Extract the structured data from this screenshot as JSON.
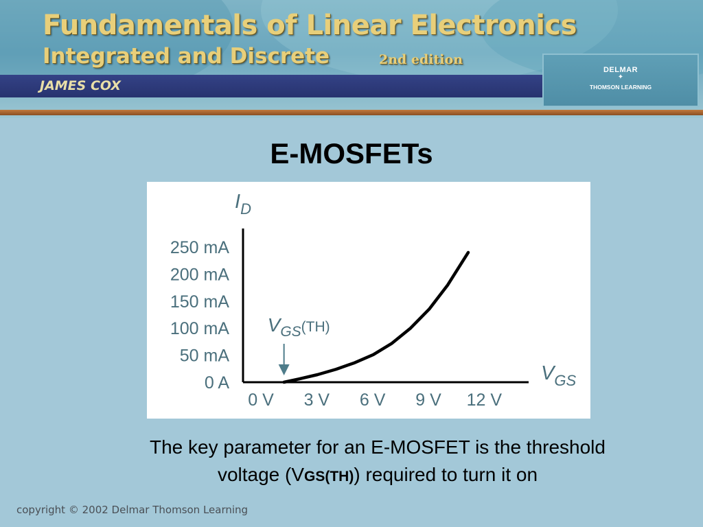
{
  "banner": {
    "title": "Fundamentals of Linear Electronics",
    "subtitle": "Integrated and Discrete",
    "edition": "2nd edition",
    "author": "JAMES COX",
    "publisher": "DELMAR",
    "publisher_sub": "THOMSON LEARNING"
  },
  "slide": {
    "title": "E-MOSFETs",
    "caption_line1": "The key parameter for an E-MOSFET is the threshold",
    "caption_pre": "voltage (V",
    "caption_sub": "GS(TH)",
    "caption_post": ") required to turn it on"
  },
  "footer": {
    "copyright": "copyright © 2002 Delmar Thomson Learning"
  },
  "colors": {
    "background": "#a3c8d8",
    "curve": "#000000",
    "arrow": "#4e7c8a"
  },
  "chart_data": {
    "type": "line",
    "title": "",
    "xlabel": "VGS",
    "ylabel": "ID",
    "x_ticks": [
      "0 V",
      "3 V",
      "6 V",
      "9 V",
      "12 V"
    ],
    "y_ticks": [
      "0 A",
      "50 mA",
      "100 mA",
      "150 mA",
      "200 mA",
      "250 mA"
    ],
    "xlim": [
      0,
      12.5
    ],
    "ylim": [
      0,
      250
    ],
    "grid": false,
    "annotation": {
      "label_main": "V",
      "label_sub": "GS",
      "label_tail": "(TH)",
      "x": 2.2
    },
    "series": [
      {
        "x": [
          2.2,
          3,
          4,
          5,
          6,
          7,
          8,
          9,
          10,
          11,
          12.1
        ],
        "y": [
          0,
          6,
          14,
          24,
          36,
          51,
          72,
          100,
          135,
          180,
          240
        ]
      }
    ]
  }
}
